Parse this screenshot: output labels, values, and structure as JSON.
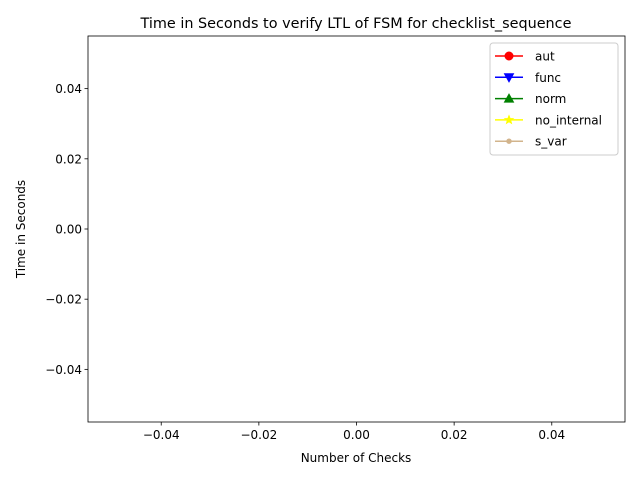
{
  "chart_data": {
    "type": "line",
    "title": "Time in Seconds to verify LTL of FSM for checklist_sequence",
    "xlabel": "Number of Checks",
    "ylabel": "Time in Seconds",
    "xlim": [
      -0.055,
      0.055
    ],
    "ylim": [
      -0.055,
      0.055
    ],
    "x_ticks": [
      "−0.04",
      "−0.02",
      "0.00",
      "0.02",
      "0.04"
    ],
    "y_ticks": [
      "−0.04",
      "−0.02",
      "0.00",
      "0.02",
      "0.04"
    ],
    "x_tick_values": [
      -0.04,
      -0.02,
      0.0,
      0.02,
      0.04
    ],
    "y_tick_values": [
      -0.04,
      -0.02,
      0.0,
      0.02,
      0.04
    ],
    "grid": false,
    "legend_position": "top-right",
    "series": [
      {
        "name": "aut",
        "color": "#ff0000",
        "marker": "circle",
        "x": [],
        "y": []
      },
      {
        "name": "func",
        "color": "#0000ff",
        "marker": "triangle-down",
        "x": [],
        "y": []
      },
      {
        "name": "norm",
        "color": "#008000",
        "marker": "triangle-up",
        "x": [],
        "y": []
      },
      {
        "name": "no_internal",
        "color": "#ffff00",
        "marker": "star",
        "x": [],
        "y": []
      },
      {
        "name": "s_var",
        "color": "#d2b48c",
        "marker": "point",
        "x": [],
        "y": []
      }
    ]
  }
}
